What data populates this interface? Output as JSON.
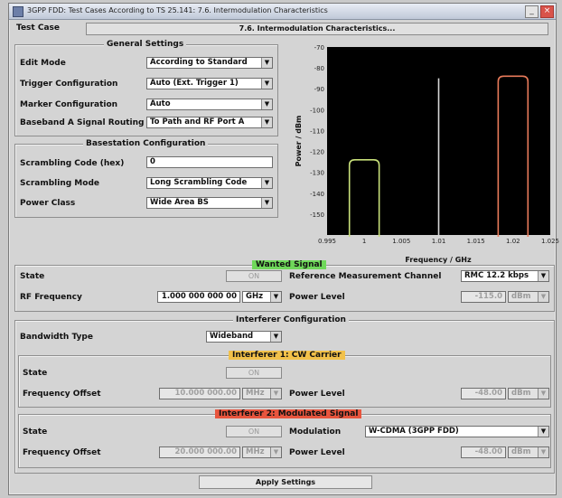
{
  "window": {
    "title": "3GPP FDD: Test Cases According to TS 25.141: 7.6. Intermodulation Characteristics"
  },
  "test_case": {
    "label": "Test Case",
    "value": "7.6. Intermodulation Characteristics..."
  },
  "general_settings": {
    "title": "General Settings",
    "rows": [
      {
        "label": "Edit Mode",
        "value": "According to Standard"
      },
      {
        "label": "Trigger Configuration",
        "value": "Auto (Ext. Trigger 1)"
      },
      {
        "label": "Marker Configuration",
        "value": "Auto"
      },
      {
        "label": "Baseband A Signal Routing",
        "value": "To Path and RF Port A"
      }
    ]
  },
  "basestation": {
    "title": "Basestation Configuration",
    "scrambling_code_label": "Scrambling Code (hex)",
    "scrambling_code_value": "0",
    "scrambling_mode_label": "Scrambling Mode",
    "scrambling_mode_value": "Long Scrambling Code",
    "power_class_label": "Power Class",
    "power_class_value": "Wide Area BS"
  },
  "wanted_signal": {
    "title": "Wanted Signal",
    "title_color": "#6fd85a",
    "state_label": "State",
    "state_value": "ON",
    "ref_channel_label": "Reference Measurement Channel",
    "ref_channel_value": "RMC 12.2 kbps",
    "rf_freq_label": "RF Frequency",
    "rf_freq_value": "1.000 000 000 00",
    "rf_freq_unit": "GHz",
    "power_level_label": "Power Level",
    "power_level_value": "-115.0",
    "power_level_unit": "dBm"
  },
  "interferer_config": {
    "title": "Interferer Configuration",
    "bandwidth_type_label": "Bandwidth Type",
    "bandwidth_type_value": "Wideband"
  },
  "interferer1": {
    "title": "Interferer 1: CW Carrier",
    "title_color": "#f2c14a",
    "state_label": "State",
    "state_value": "ON",
    "freq_offset_label": "Frequency Offset",
    "freq_offset_value": "10.000 000.00",
    "freq_offset_unit": "MHz",
    "power_level_label": "Power Level",
    "power_level_value": "-48.00",
    "power_level_unit": "dBm"
  },
  "interferer2": {
    "title": "Interferer 2: Modulated Signal",
    "title_color": "#e8553e",
    "state_label": "State",
    "state_value": "ON",
    "modulation_label": "Modulation",
    "modulation_value": "W-CDMA (3GPP FDD)",
    "freq_offset_label": "Frequency Offset",
    "freq_offset_value": "20.000 000.00",
    "freq_offset_unit": "MHz",
    "power_level_label": "Power Level",
    "power_level_value": "-48.00",
    "power_level_unit": "dBm"
  },
  "apply_button": "Apply Settings",
  "chart_data": {
    "type": "line",
    "xlabel": "Frequency / GHz",
    "ylabel": "Power / dBm",
    "xlim": [
      0.995,
      1.025
    ],
    "ylim": [
      -160,
      -70
    ],
    "x_ticks": [
      "0.995",
      "1",
      "1.005",
      "1.01",
      "1.015",
      "1.02",
      "1.025"
    ],
    "y_ticks": [
      "-70",
      "-80",
      "-90",
      "-100",
      "-110",
      "-120",
      "-130",
      "-140",
      "-150"
    ],
    "grid": false,
    "background": "#000000",
    "series": [
      {
        "color": "#c8e07a",
        "type": "band",
        "x_start": 0.998,
        "x_end": 1.002,
        "level": -124
      },
      {
        "color": "#d8d8d8",
        "type": "line",
        "x": 1.01,
        "level": -85
      },
      {
        "color": "#e87a5a",
        "type": "band",
        "x_start": 1.018,
        "x_end": 1.022,
        "level": -84
      }
    ]
  }
}
